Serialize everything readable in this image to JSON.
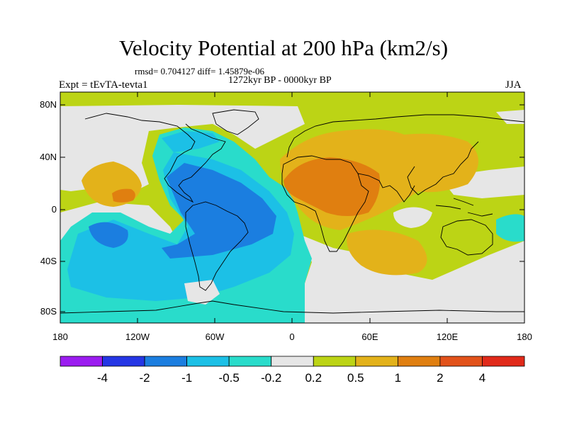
{
  "header": {
    "title": "Velocity Potential at 200 hPa (km2/s)",
    "stats": "rmsd= 0.704127 diff= 1.45879e-06",
    "period": "1272kyr BP - 0000kyr BP",
    "experiment": "Expt = tEvTA-tevta1",
    "season": "JJA"
  },
  "axes": {
    "lat_labels": [
      "80N",
      "40N",
      "0",
      "40S",
      "80S"
    ],
    "lon_labels": [
      "180",
      "120W",
      "60W",
      "0",
      "60E",
      "120E",
      "180"
    ]
  },
  "colorbar": {
    "labels": [
      "-4",
      "-2",
      "-1",
      "-0.5",
      "-0.2",
      "0.2",
      "0.5",
      "1",
      "2",
      "4"
    ],
    "colors": [
      "#9b1cf0",
      "#2536e5",
      "#1b7ee0",
      "#1cc0e6",
      "#29dccb",
      "#e6e6e6",
      "#bcd415",
      "#e3b21a",
      "#e07f10",
      "#e2521a",
      "#e12a1a"
    ]
  }
}
